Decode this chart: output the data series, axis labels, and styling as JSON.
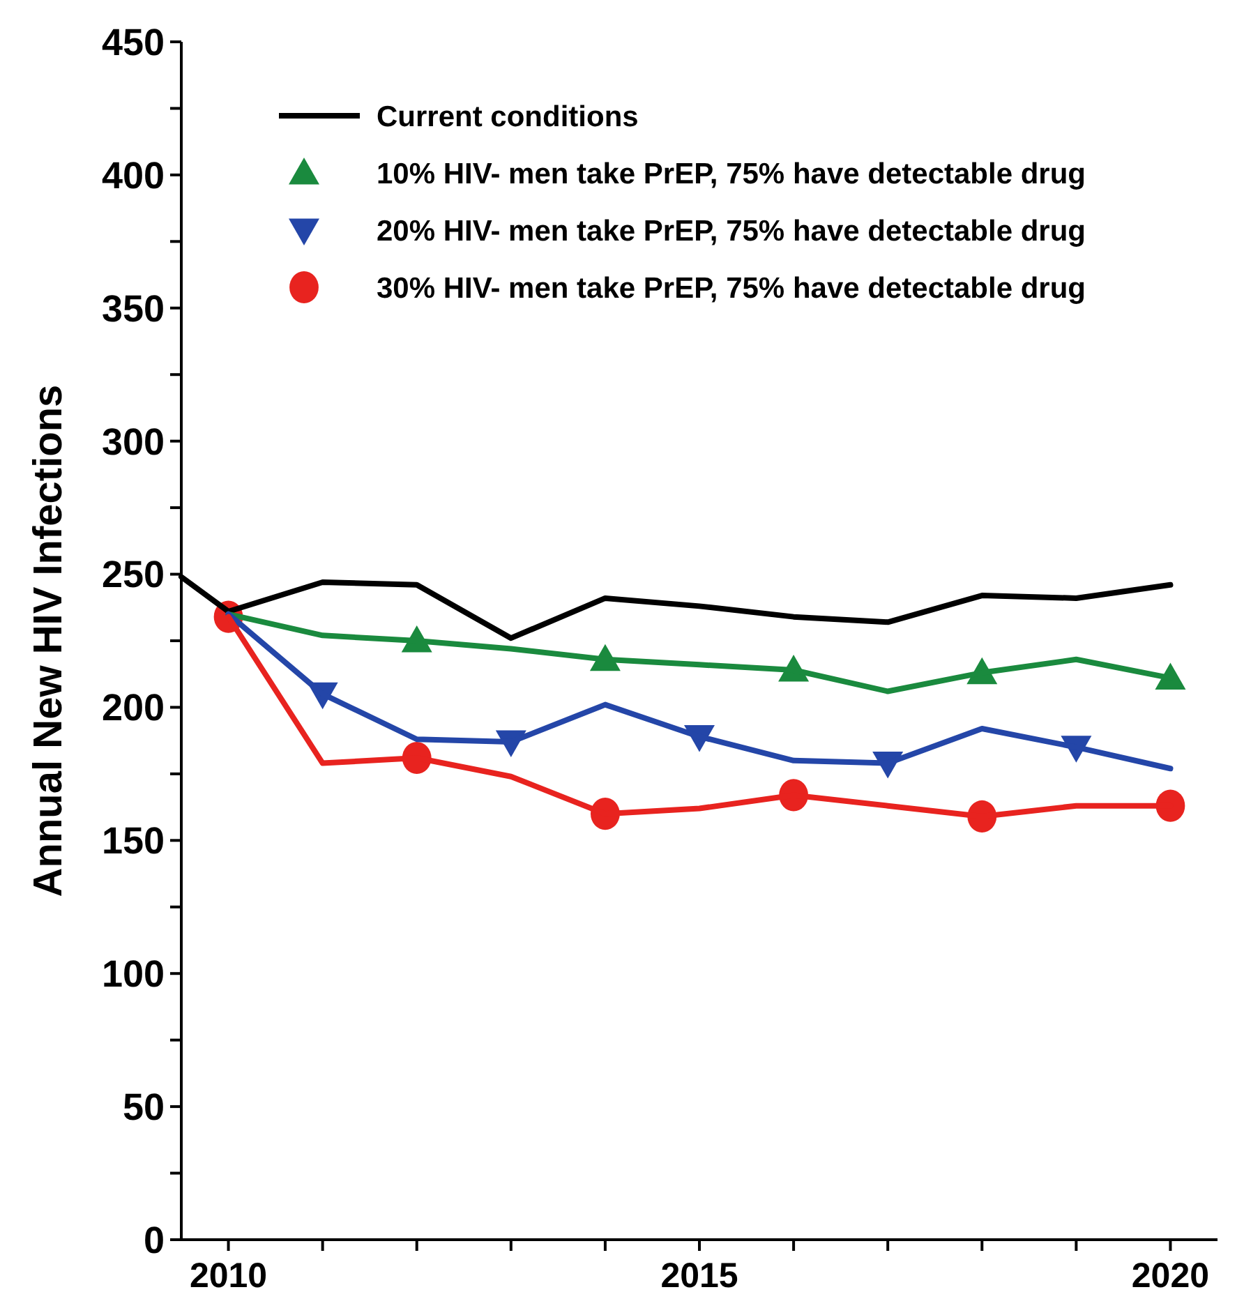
{
  "chart_data": {
    "type": "line",
    "ylabel": "Annual New HIV Infections",
    "xlim": [
      2009.5,
      2020.5
    ],
    "xticks": [
      2010,
      {
        "value": 2011,
        "label": null
      },
      {
        "value": 2012,
        "label": null
      },
      {
        "value": 2013,
        "label": null
      },
      {
        "value": 2014,
        "label": null
      },
      2015,
      {
        "value": 2016,
        "label": null
      },
      {
        "value": 2017,
        "label": null
      },
      {
        "value": 2018,
        "label": null
      },
      {
        "value": 2019,
        "label": null
      },
      2020
    ],
    "ylim": [
      0,
      450
    ],
    "yticks": [
      0,
      {
        "value": 25,
        "label": null
      },
      50,
      {
        "value": 75,
        "label": null
      },
      100,
      {
        "value": 125,
        "label": null
      },
      150,
      {
        "value": 175,
        "label": null
      },
      200,
      {
        "value": 225,
        "label": null
      },
      250,
      {
        "value": 275,
        "label": null
      },
      300,
      {
        "value": 325,
        "label": null
      },
      350,
      {
        "value": 375,
        "label": null
      },
      400,
      {
        "value": 425,
        "label": null
      },
      450
    ],
    "legend": "top",
    "grid": false,
    "series": [
      {
        "name": "Current conditions",
        "color": "#000000",
        "marker": "none",
        "x": [
          2009.5,
          2010,
          2011,
          2012,
          2013,
          2014,
          2015,
          2016,
          2017,
          2018,
          2019,
          2020
        ],
        "values": [
          249,
          236,
          247,
          246,
          226,
          241,
          238,
          234,
          232,
          242,
          241,
          246
        ]
      },
      {
        "color": "#1a8a3e",
        "marker": "none",
        "x": [
          2010,
          2011,
          2012,
          2013,
          2014,
          2015,
          2016,
          2017,
          2018,
          2019,
          2020
        ],
        "values": [
          235,
          227,
          225,
          222,
          218,
          216,
          214,
          206,
          213,
          218,
          211
        ]
      },
      {
        "color": "#2446a8",
        "marker": "none",
        "x": [
          2010,
          2011,
          2012,
          2013,
          2014,
          2015,
          2016,
          2017,
          2018,
          2019,
          2020
        ],
        "values": [
          235,
          205,
          188,
          187,
          201,
          189,
          180,
          179,
          192,
          185,
          177
        ]
      },
      {
        "color": "#e8231f",
        "marker": "none",
        "x": [
          2010,
          2011,
          2012,
          2013,
          2014,
          2015,
          2016,
          2017,
          2018,
          2019,
          2020
        ],
        "values": [
          234,
          179,
          181,
          174,
          160,
          162,
          167,
          163,
          159,
          163,
          163
        ]
      },
      {
        "name": "10% HIV- men take PrEP, 75% have detectable drug",
        "type": "scatter",
        "color": "#1a8a3e",
        "marker": "triangle",
        "x": [
          2012,
          2014,
          2016,
          2018,
          2020
        ],
        "values": [
          225,
          218,
          214,
          213,
          211
        ]
      },
      {
        "name": "20% HIV- men take PrEP, 75% have detectable drug",
        "type": "scatter",
        "color": "#2446a8",
        "marker": "triangle-down",
        "x": [
          2011,
          2013,
          2015,
          2017,
          2019
        ],
        "values": [
          205,
          187,
          189,
          179,
          185
        ]
      },
      {
        "name": "30% HIV- men take PrEP, 75% have detectable drug",
        "type": "scatter",
        "color": "#e8231f",
        "marker": "circle",
        "x": [
          2010,
          2012,
          2014,
          2016,
          2018,
          2020
        ],
        "values": [
          234,
          181,
          160,
          167,
          159,
          163
        ]
      }
    ]
  }
}
